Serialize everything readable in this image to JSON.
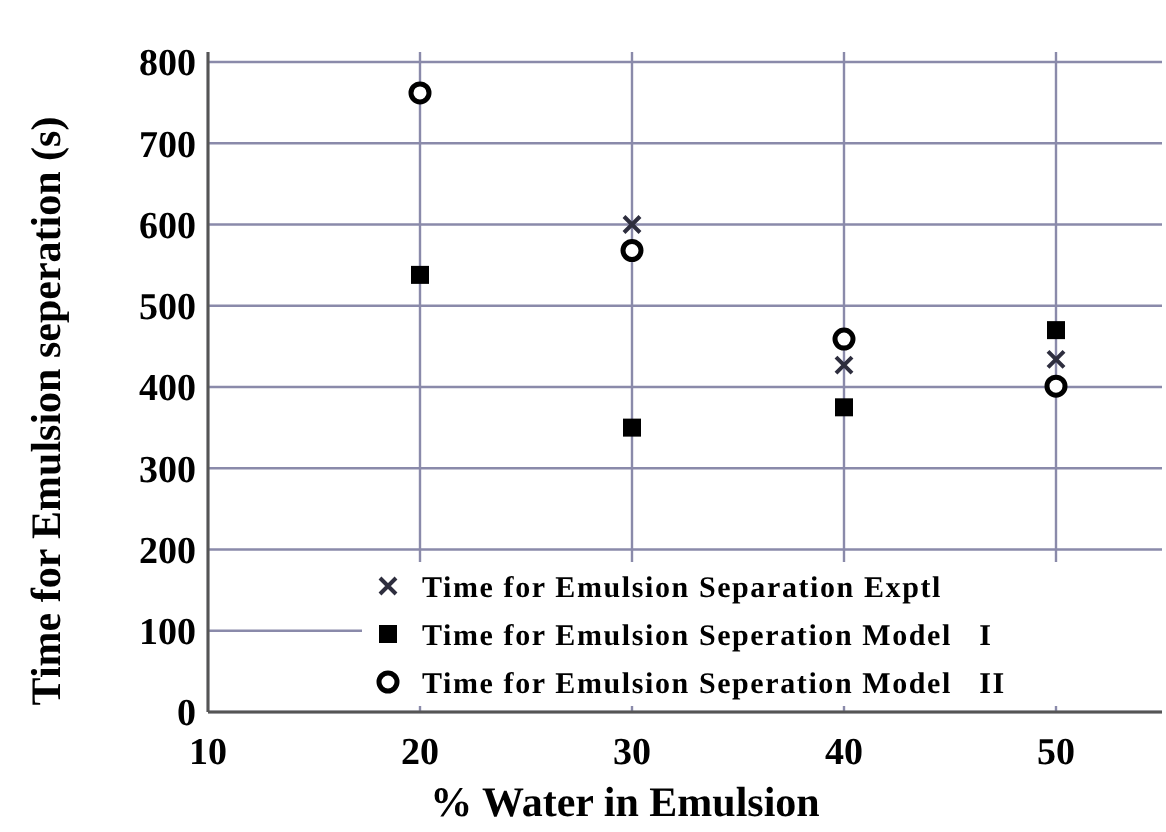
{
  "chart_data": {
    "type": "scatter",
    "xlabel": "% Water in Emulsion",
    "ylabel": "Time for Emulsion seperation (s)",
    "x": [
      20,
      30,
      40,
      50
    ],
    "series": [
      {
        "name": "Time for Emulsion Separation Exptl",
        "color": "#2e2e3e",
        "marker": "cross",
        "values": [
          null,
          600,
          427,
          434
        ]
      },
      {
        "name": "Time for Emulsion Seperation Model   I",
        "color": "#000000",
        "marker": "square",
        "values": [
          538,
          350,
          375,
          470
        ]
      },
      {
        "name": "Time for Emulsion Seperation Model   II",
        "color": "#000000",
        "marker": "circle",
        "values": [
          762,
          568,
          459,
          401
        ]
      }
    ],
    "xlim": [
      10,
      55
    ],
    "xticks": [
      10,
      20,
      30,
      40,
      50
    ],
    "ylim": [
      0,
      800
    ],
    "yticks": [
      0,
      100,
      200,
      300,
      400,
      500,
      600,
      700,
      800
    ],
    "grid": true,
    "legend": "bottom right"
  }
}
